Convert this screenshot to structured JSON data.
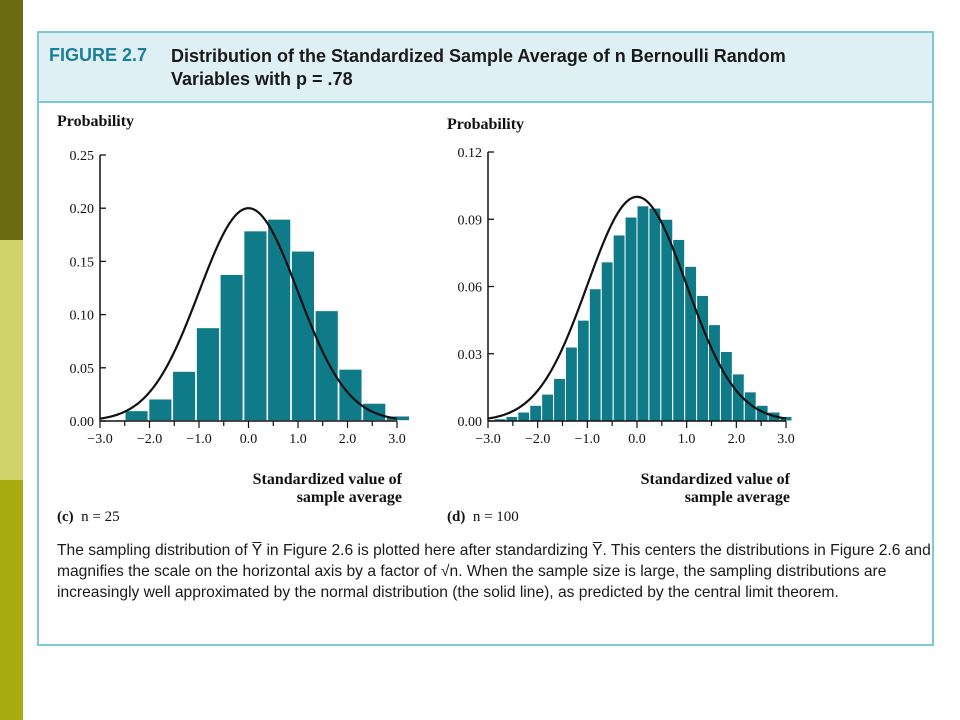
{
  "figure": {
    "label": "FIGURE 2.7",
    "title_line1": "Distribution of the Standardized Sample Average of n Bernoulli Random",
    "title_line2": "Variables with p = .78",
    "caption": "The sampling distribution of Y̅ in Figure 2.6 is plotted here after standardizing Y̅. This centers the distributions in Figure 2.6 and magnifies the scale on the horizontal axis by a factor of √n. When the sample size is large, the sampling distributions are increasingly well approximated by the normal distribution (the solid line), as predicted by the central limit theorem."
  },
  "colors": {
    "bar": "#0f7a88",
    "curve": "#111111",
    "frame": "#7fc9d6",
    "header_bg": "#dff0f4",
    "label_blue": "#1b7f98"
  },
  "chart_data": [
    {
      "type": "bar",
      "panel": "(c)",
      "n_label": "n = 25",
      "ylabel": "Probability",
      "xlabel_line1": "Standardized value of",
      "xlabel_line2": "sample average",
      "xlim": [
        -3.0,
        3.0
      ],
      "ylim": [
        0,
        0.25
      ],
      "xticks": [
        "−3.0",
        "−2.0",
        "−1.0",
        "0.0",
        "1.0",
        "2.0",
        "3.0"
      ],
      "yticks": [
        "0.00",
        "0.05",
        "0.10",
        "0.15",
        "0.20",
        "0.25"
      ],
      "bar_width": 0.48,
      "x": [
        -2.5,
        -2.02,
        -1.54,
        -1.06,
        -0.58,
        -0.1,
        0.38,
        0.86,
        1.34,
        1.82,
        2.3,
        2.78
      ],
      "values": [
        0.01,
        0.021,
        0.047,
        0.088,
        0.138,
        0.179,
        0.19,
        0.16,
        0.104,
        0.049,
        0.017,
        0.005
      ],
      "curve": "normal",
      "curve_peak": 0.2
    },
    {
      "type": "bar",
      "panel": "(d)",
      "n_label": "n = 100",
      "ylabel": "Probability",
      "xlabel_line1": "Standardized value of",
      "xlabel_line2": "sample average",
      "xlim": [
        -3.0,
        3.0
      ],
      "ylim": [
        0,
        0.12
      ],
      "xticks": [
        "−3.0",
        "−2.0",
        "−1.0",
        "0.0",
        "1.0",
        "2.0",
        "3.0"
      ],
      "yticks": [
        "0.00",
        "0.03",
        "0.06",
        "0.09",
        "0.12"
      ],
      "bar_width": 0.24,
      "x": [
        -2.88,
        -2.64,
        -2.4,
        -2.16,
        -1.92,
        -1.68,
        -1.44,
        -1.2,
        -0.96,
        -0.72,
        -0.48,
        -0.24,
        0.0,
        0.24,
        0.48,
        0.72,
        0.96,
        1.2,
        1.44,
        1.68,
        1.92,
        2.16,
        2.4,
        2.64,
        2.88
      ],
      "values": [
        0.001,
        0.002,
        0.004,
        0.007,
        0.012,
        0.019,
        0.033,
        0.045,
        0.059,
        0.071,
        0.083,
        0.091,
        0.096,
        0.095,
        0.09,
        0.081,
        0.069,
        0.056,
        0.043,
        0.031,
        0.021,
        0.013,
        0.007,
        0.004,
        0.002
      ],
      "curve": "normal",
      "curve_peak": 0.1
    }
  ]
}
